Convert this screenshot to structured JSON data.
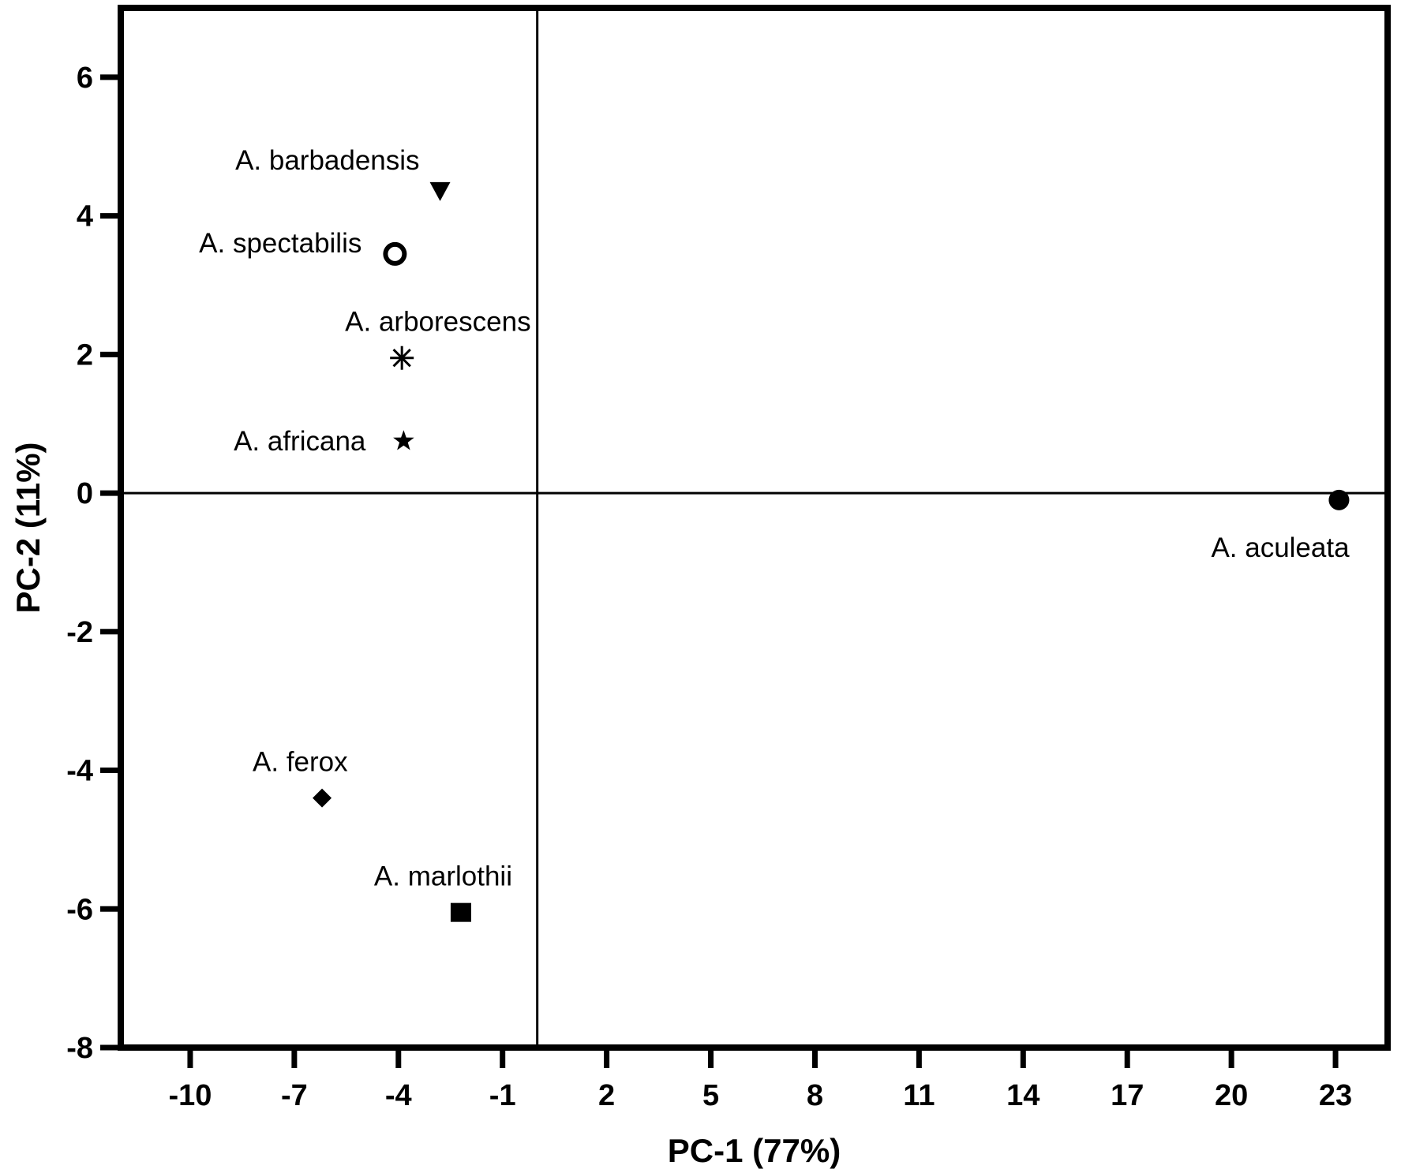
{
  "chart_data": {
    "type": "scatter",
    "xlabel": "PC-1 (77%)",
    "ylabel": "PC-2 (11%)",
    "xlim": [
      -12,
      24.5
    ],
    "ylim": [
      -8,
      7
    ],
    "xticks": [
      -10,
      -7,
      -4,
      -1,
      2,
      5,
      8,
      11,
      14,
      17,
      20,
      23
    ],
    "yticks": [
      6,
      4,
      2,
      0,
      -2,
      -4,
      -6,
      -8
    ],
    "reference_lines": {
      "x": 0,
      "y": 0
    },
    "grid": false,
    "legend": "none",
    "points": [
      {
        "label": "A. barbadensis",
        "x": -2.8,
        "y": 4.35,
        "marker": "triangle-down"
      },
      {
        "label": "A. spectabilis",
        "x": -4.1,
        "y": 3.45,
        "marker": "open-circle"
      },
      {
        "label": "A. arborescens",
        "x": -3.9,
        "y": 1.95,
        "marker": "asterisk"
      },
      {
        "label": "A. africana",
        "x": -3.85,
        "y": 0.75,
        "marker": "star"
      },
      {
        "label": "A. aculeata",
        "x": 23.1,
        "y": -0.1,
        "marker": "filled-circle"
      },
      {
        "label": "A. ferox",
        "x": -6.2,
        "y": -4.4,
        "marker": "diamond"
      },
      {
        "label": "A. marlothii",
        "x": -2.2,
        "y": -6.05,
        "marker": "square"
      }
    ]
  }
}
